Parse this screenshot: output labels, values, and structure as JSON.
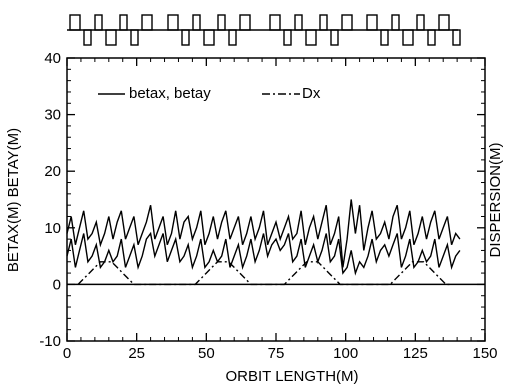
{
  "chart_data": {
    "type": "line",
    "title": "",
    "xlabel": "ORBIT LENGTH(M)",
    "ylabel_left": "BETAX(M) BETAY(M)",
    "ylabel_right": "DISPERSION(M)",
    "xlim": [
      0,
      150
    ],
    "ylim": [
      -10,
      40
    ],
    "x_ticks": [
      0,
      25,
      50,
      75,
      100,
      125,
      150
    ],
    "y_ticks": [
      -10,
      0,
      10,
      20,
      30,
      40
    ],
    "grid": false,
    "legend": {
      "placement": "top-left",
      "entries": [
        {
          "label": "betax, betay",
          "style": "solid"
        },
        {
          "label": "Dx",
          "style": "dash-dot"
        }
      ]
    },
    "series": [
      {
        "name": "betax",
        "style": "solid",
        "x": [
          0,
          1.5,
          3,
          4.5,
          6,
          7.5,
          9,
          10.5,
          12,
          13.5,
          15,
          16.5,
          18,
          19.5,
          21,
          22.5,
          24,
          25.5,
          27,
          28.5,
          30,
          31.5,
          33,
          34.5,
          36,
          37.5,
          39,
          40.5,
          42,
          43.5,
          45,
          46.5,
          48,
          49.5,
          51,
          52.5,
          54,
          55.5,
          57,
          58.5,
          60,
          61.5,
          63,
          64.5,
          66,
          67.5,
          69,
          70.5,
          72,
          73.5,
          75,
          76.5,
          78,
          79.5,
          81,
          82.5,
          84,
          85.5,
          87,
          88.5,
          90,
          91.5,
          93,
          94.5,
          96,
          97.5,
          99,
          100.5,
          102,
          103.5,
          105,
          106.5,
          108,
          109.5,
          111,
          112.5,
          114,
          115.5,
          117,
          118.5,
          120,
          121.5,
          123,
          124.5,
          126,
          127.5,
          129,
          130.5,
          132,
          133.5,
          135,
          136.5,
          138,
          139.5,
          141
        ],
        "values": [
          9,
          12,
          7,
          10,
          13,
          8,
          9,
          11,
          7,
          9,
          12,
          8,
          11,
          13,
          8,
          10,
          12,
          7,
          9,
          11,
          14,
          8,
          10,
          12,
          7,
          9,
          13,
          8,
          11,
          12,
          8,
          10,
          13,
          7,
          9,
          12,
          8,
          11,
          13,
          8,
          10,
          12,
          7,
          9,
          12,
          8,
          10,
          13,
          7,
          9,
          11,
          8,
          10,
          12,
          8,
          9,
          13,
          7,
          10,
          12,
          8,
          11,
          14,
          7,
          9,
          12,
          3,
          8,
          15,
          9,
          14,
          6,
          10,
          13,
          8,
          9,
          11,
          8,
          12,
          14,
          8,
          10,
          13,
          7,
          9,
          12,
          8,
          11,
          13,
          8,
          10,
          12,
          7,
          9,
          8
        ]
      },
      {
        "name": "betay",
        "style": "solid",
        "x": [
          0,
          1.5,
          3,
          4.5,
          6,
          7.5,
          9,
          10.5,
          12,
          13.5,
          15,
          16.5,
          18,
          19.5,
          21,
          22.5,
          24,
          25.5,
          27,
          28.5,
          30,
          31.5,
          33,
          34.5,
          36,
          37.5,
          39,
          40.5,
          42,
          43.5,
          45,
          46.5,
          48,
          49.5,
          51,
          52.5,
          54,
          55.5,
          57,
          58.5,
          60,
          61.5,
          63,
          64.5,
          66,
          67.5,
          69,
          70.5,
          72,
          73.5,
          75,
          76.5,
          78,
          79.5,
          81,
          82.5,
          84,
          85.5,
          87,
          88.5,
          90,
          91.5,
          93,
          94.5,
          96,
          97.5,
          99,
          100.5,
          102,
          103.5,
          105,
          106.5,
          108,
          109.5,
          111,
          112.5,
          114,
          115.5,
          117,
          118.5,
          120,
          121.5,
          123,
          124.5,
          126,
          127.5,
          129,
          130.5,
          132,
          133.5,
          135,
          136.5,
          138,
          139.5,
          141
        ],
        "values": [
          5,
          8,
          3,
          6,
          9,
          4,
          5,
          7,
          3,
          4,
          6,
          4,
          5,
          8,
          3,
          5,
          7,
          3,
          5,
          8,
          9,
          5,
          7,
          9,
          4,
          6,
          8,
          4,
          5,
          7,
          3,
          5,
          8,
          3,
          4,
          6,
          4,
          5,
          8,
          3,
          5,
          7,
          3,
          5,
          8,
          4,
          6,
          9,
          5,
          7,
          8,
          6,
          7,
          9,
          4,
          5,
          8,
          3,
          5,
          7,
          4,
          6,
          9,
          4,
          5,
          8,
          2,
          3,
          6,
          2,
          4,
          3,
          5,
          8,
          4,
          6,
          7,
          5,
          7,
          9,
          3,
          5,
          8,
          3,
          4,
          6,
          4,
          5,
          8,
          3,
          5,
          7,
          3,
          5,
          6
        ]
      },
      {
        "name": "Dx",
        "style": "dash-dot",
        "x": [
          4,
          6,
          8,
          10,
          12,
          14,
          16,
          18,
          20,
          22,
          24,
          36,
          38,
          40,
          42,
          44,
          46,
          48,
          50,
          52,
          54,
          56,
          58,
          60,
          62,
          64,
          66,
          68,
          70,
          72,
          74,
          76,
          78,
          80,
          82,
          84,
          86,
          88,
          90,
          92,
          94,
          96,
          98,
          100,
          102,
          104,
          106,
          108,
          110,
          112,
          114,
          116,
          118,
          120,
          122,
          124,
          126,
          128,
          130,
          132,
          134,
          136,
          138
        ],
        "values": [
          0,
          1,
          2,
          3,
          4,
          4,
          4,
          3,
          2,
          1,
          0,
          0,
          0,
          0,
          0,
          0,
          0,
          1,
          2,
          3,
          4,
          4,
          4,
          3,
          2,
          1,
          0,
          0,
          0,
          0,
          0,
          0,
          0,
          1,
          2,
          3,
          4,
          4,
          4,
          3,
          2,
          1,
          0,
          0,
          0,
          0,
          0,
          0,
          0,
          0,
          0,
          0,
          1,
          2,
          3,
          4,
          4,
          4,
          3,
          2,
          1,
          0,
          0
        ]
      }
    ],
    "magnet_lattice_header": {
      "description_visible": "lattice element schematic above plot"
    }
  }
}
